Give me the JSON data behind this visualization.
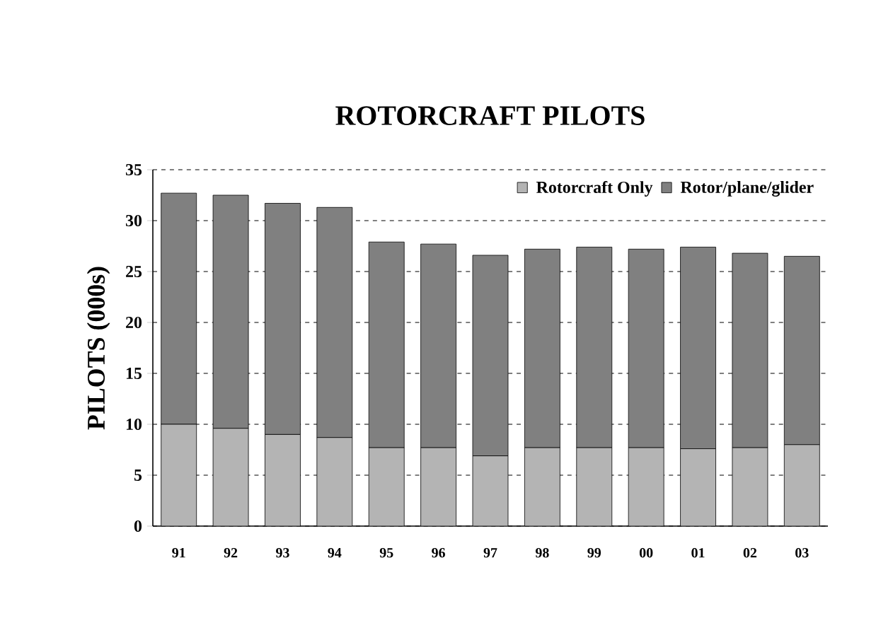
{
  "chart_data": {
    "type": "bar",
    "title": "ROTORCRAFT PILOTS",
    "ylabel": "PILOTS (000s)",
    "categories": [
      "91",
      "92",
      "93",
      "94",
      "95",
      "96",
      "97",
      "98",
      "99",
      "00",
      "01",
      "02",
      "03"
    ],
    "stacked": true,
    "series": [
      {
        "name": "Rotorcraft Only",
        "color": "#b4b4b4",
        "values": [
          10.0,
          9.6,
          9.0,
          8.7,
          7.7,
          7.7,
          6.9,
          7.7,
          7.7,
          7.7,
          7.6,
          7.7,
          8.0
        ]
      },
      {
        "name": "Rotor/plane/glider",
        "color": "#808080",
        "values": [
          22.7,
          22.9,
          22.7,
          22.6,
          20.2,
          20.0,
          19.7,
          19.5,
          19.7,
          19.5,
          19.8,
          19.1,
          18.5
        ]
      }
    ],
    "ylim": [
      0,
      35
    ],
    "yticks": [
      0,
      5,
      10,
      15,
      20,
      25,
      30,
      35
    ],
    "grid": "y",
    "legend": "top right"
  }
}
